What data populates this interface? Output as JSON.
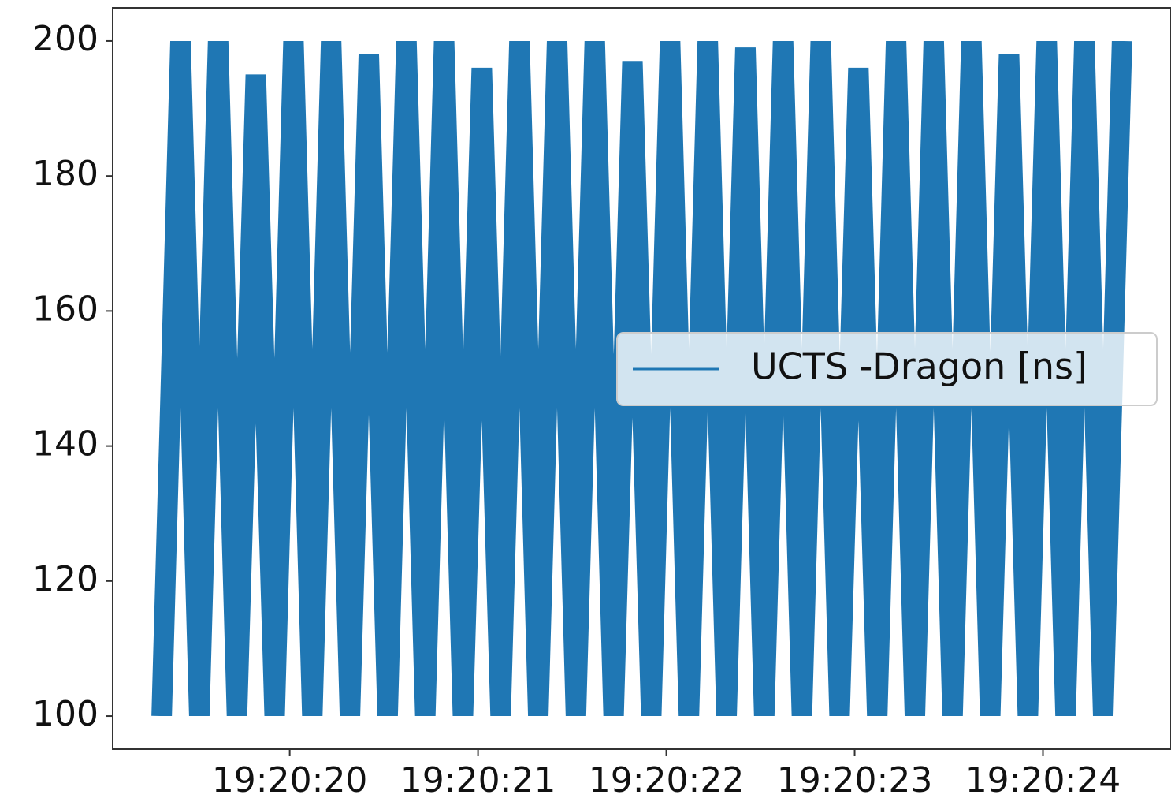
{
  "chart_data": {
    "type": "line",
    "x": [
      69619.32,
      69619.42,
      69619.52,
      69619.62,
      69619.72,
      69619.82,
      69619.92,
      69620.02,
      69620.12,
      69620.22,
      69620.32,
      69620.42,
      69620.52,
      69620.62,
      69620.72,
      69620.82,
      69620.92,
      69621.02,
      69621.12,
      69621.22,
      69621.32,
      69621.42,
      69621.52,
      69621.62,
      69621.72,
      69621.82,
      69621.92,
      69622.02,
      69622.12,
      69622.22,
      69622.32,
      69622.42,
      69622.52,
      69622.62,
      69622.72,
      69622.82,
      69622.92,
      69623.02,
      69623.12,
      69623.22,
      69623.32,
      69623.42,
      69623.52,
      69623.62,
      69623.72,
      69623.82,
      69623.92,
      69624.02,
      69624.12,
      69624.22,
      69624.32,
      69624.42
    ],
    "series": [
      {
        "name": "UCTS -Dragon [ns]",
        "color": "#1f77b4",
        "values": [
          100,
          200,
          100,
          200,
          100,
          195,
          100,
          200,
          100,
          200,
          100,
          198,
          100,
          200,
          100,
          200,
          100,
          196,
          100,
          200,
          100,
          200,
          100,
          200,
          100,
          197,
          100,
          200,
          100,
          200,
          100,
          199,
          100,
          200,
          100,
          200,
          100,
          196,
          100,
          200,
          100,
          200,
          100,
          200,
          100,
          198,
          100,
          200,
          100,
          200,
          100,
          200
        ]
      }
    ],
    "xlim": [
      69619.06,
      69624.68
    ],
    "xticks": [
      {
        "value": 69620,
        "label": "19:20:20"
      },
      {
        "value": 69621,
        "label": "19:20:21"
      },
      {
        "value": 69622,
        "label": "19:20:22"
      },
      {
        "value": 69623,
        "label": "19:20:23"
      },
      {
        "value": 69624,
        "label": "19:20:24"
      }
    ],
    "ylim": [
      95.1,
      204.9
    ],
    "yticks": [
      100,
      120,
      140,
      160,
      180,
      200
    ],
    "legend": "center right"
  }
}
